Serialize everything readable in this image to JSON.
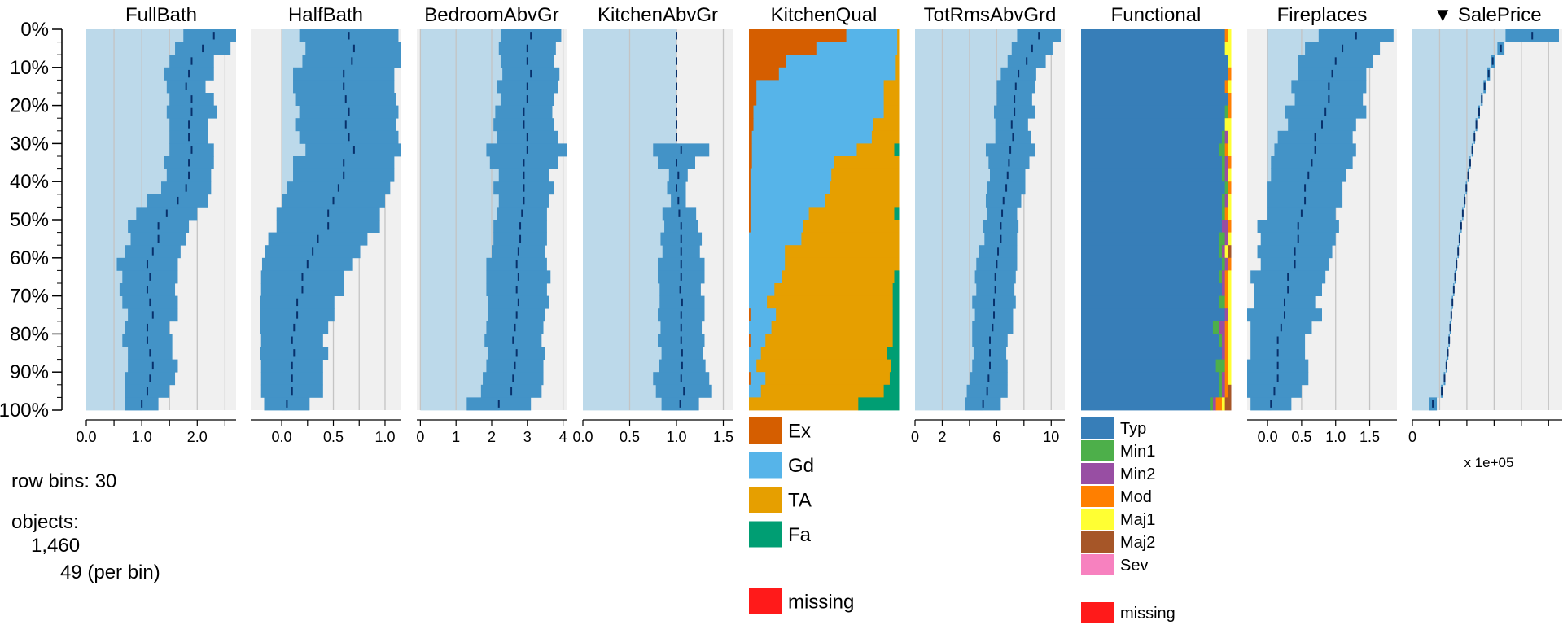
{
  "chart_data": {
    "type": "tableplot",
    "sort_column": "SalePrice",
    "sort_indicator": "▼",
    "y_tick_labels": [
      "0%",
      "10%",
      "20%",
      "30%",
      "40%",
      "50%",
      "60%",
      "70%",
      "80%",
      "90%",
      "100%"
    ],
    "row_bins": 30,
    "panels": [
      {
        "name": "FullBath",
        "type": "numeric",
        "xlim": [
          0,
          2.7
        ],
        "ticks": [
          {
            "value": 0,
            "label": "0.0"
          },
          {
            "value": 0.5,
            "label": ""
          },
          {
            "value": 1,
            "label": "1.0"
          },
          {
            "value": 1.5,
            "label": ""
          },
          {
            "value": 2,
            "label": "2.0"
          },
          {
            "value": 2.5,
            "label": ""
          }
        ],
        "means": [
          2.3,
          2.1,
          1.9,
          1.85,
          1.8,
          1.9,
          1.9,
          1.85,
          1.85,
          1.9,
          1.85,
          1.85,
          1.8,
          1.65,
          1.45,
          1.3,
          1.3,
          1.2,
          1.1,
          1.15,
          1.1,
          1.15,
          1.2,
          1.1,
          1.1,
          1.15,
          1.2,
          1.15,
          1.1,
          1.0
        ],
        "sds": [
          0.55,
          0.5,
          0.4,
          0.45,
          0.35,
          0.4,
          0.45,
          0.35,
          0.35,
          0.4,
          0.45,
          0.4,
          0.45,
          0.55,
          0.55,
          0.55,
          0.5,
          0.5,
          0.55,
          0.5,
          0.5,
          0.5,
          0.45,
          0.4,
          0.45,
          0.4,
          0.45,
          0.45,
          0.4,
          0.3
        ]
      },
      {
        "name": "HalfBath",
        "type": "numeric",
        "xlim": [
          -0.3,
          1.15
        ],
        "ticks": [
          {
            "value": 0,
            "label": "0.0"
          },
          {
            "value": 0.25,
            "label": ""
          },
          {
            "value": 0.5,
            "label": "0.5"
          },
          {
            "value": 0.75,
            "label": ""
          },
          {
            "value": 1,
            "label": "1.0"
          }
        ],
        "means": [
          0.65,
          0.7,
          0.68,
          0.6,
          0.6,
          0.62,
          0.65,
          0.62,
          0.65,
          0.7,
          0.6,
          0.6,
          0.55,
          0.5,
          0.45,
          0.45,
          0.35,
          0.3,
          0.25,
          0.2,
          0.2,
          0.15,
          0.15,
          0.12,
          0.1,
          0.12,
          0.1,
          0.1,
          0.1,
          0.05
        ],
        "sds": [
          0.48,
          0.47,
          0.48,
          0.49,
          0.49,
          0.49,
          0.48,
          0.49,
          0.48,
          0.47,
          0.49,
          0.49,
          0.5,
          0.5,
          0.5,
          0.5,
          0.48,
          0.46,
          0.44,
          0.4,
          0.4,
          0.36,
          0.36,
          0.33,
          0.3,
          0.33,
          0.3,
          0.3,
          0.3,
          0.22
        ]
      },
      {
        "name": "BedroomAbvGr",
        "type": "numeric",
        "xlim": [
          -0.1,
          4.1
        ],
        "ticks": [
          {
            "value": 0,
            "label": "0"
          },
          {
            "value": 1,
            "label": "1"
          },
          {
            "value": 2,
            "label": "2"
          },
          {
            "value": 3,
            "label": "3"
          },
          {
            "value": 4,
            "label": "4"
          }
        ],
        "means": [
          3.1,
          3.0,
          3.0,
          3.1,
          3.0,
          3.0,
          2.9,
          2.9,
          3.0,
          3.0,
          2.9,
          2.9,
          2.9,
          2.9,
          2.85,
          2.8,
          2.8,
          2.75,
          2.7,
          2.75,
          2.7,
          2.75,
          2.7,
          2.65,
          2.6,
          2.7,
          2.65,
          2.6,
          2.55,
          2.2
        ],
        "sds": [
          0.85,
          0.8,
          0.75,
          0.8,
          0.85,
          0.75,
          0.8,
          0.85,
          0.85,
          1.15,
          0.95,
          0.7,
          0.85,
          0.7,
          0.7,
          0.75,
          0.75,
          0.75,
          0.85,
          0.9,
          0.85,
          0.85,
          0.8,
          0.8,
          0.8,
          0.8,
          0.8,
          0.85,
          0.85,
          0.9
        ]
      },
      {
        "name": "KitchenAbvGr",
        "type": "numeric",
        "xlim": [
          0,
          1.6
        ],
        "ticks": [
          {
            "value": 0,
            "label": "0.0"
          },
          {
            "value": 0.5,
            "label": "0.5"
          },
          {
            "value": 1,
            "label": "1.0"
          },
          {
            "value": 1.5,
            "label": "1.5"
          }
        ],
        "means": [
          1,
          1,
          1,
          1,
          1,
          1,
          1,
          1,
          1,
          1.05,
          1.0,
          1.02,
          1.0,
          1.02,
          1.03,
          1.05,
          1.05,
          1.05,
          1.05,
          1.05,
          1.04,
          1.06,
          1.05,
          1.05,
          1.05,
          1.06,
          1.06,
          1.05,
          1.08,
          1.04
        ],
        "sds": [
          0,
          0,
          0,
          0,
          0,
          0,
          0,
          0,
          0,
          0.3,
          0.2,
          0.1,
          0.1,
          0.08,
          0.18,
          0.18,
          0.22,
          0.2,
          0.25,
          0.25,
          0.22,
          0.24,
          0.25,
          0.22,
          0.25,
          0.22,
          0.25,
          0.3,
          0.3,
          0.2
        ]
      },
      {
        "name": "KitchenQual",
        "type": "categorical",
        "categories": [
          {
            "label": "Ex",
            "color": "#D55E00",
            "key": "ex"
          },
          {
            "label": "Gd",
            "color": "#56B4E9",
            "key": "gd"
          },
          {
            "label": "TA",
            "color": "#E69F00",
            "key": "ta"
          },
          {
            "label": "Fa",
            "color": "#009E73",
            "key": "fa"
          }
        ],
        "missing_label": "missing",
        "missing_color": "#FF1A1A",
        "proportions": [
          [
            0.65,
            0.34,
            0.01,
            0
          ],
          [
            0.45,
            0.54,
            0.01,
            0
          ],
          [
            0.25,
            0.73,
            0.02,
            0
          ],
          [
            0.2,
            0.78,
            0.02,
            0
          ],
          [
            0.05,
            0.85,
            0.1,
            0
          ],
          [
            0.05,
            0.85,
            0.1,
            0
          ],
          [
            0.03,
            0.87,
            0.1,
            0
          ],
          [
            0.03,
            0.8,
            0.17,
            0
          ],
          [
            0.02,
            0.8,
            0.18,
            0
          ],
          [
            0.02,
            0.7,
            0.25,
            0.03
          ],
          [
            0.02,
            0.55,
            0.43,
            0
          ],
          [
            0.01,
            0.54,
            0.45,
            0
          ],
          [
            0.01,
            0.53,
            0.46,
            0
          ],
          [
            0.01,
            0.5,
            0.49,
            0
          ],
          [
            0.01,
            0.39,
            0.57,
            0.03
          ],
          [
            0.01,
            0.35,
            0.64,
            0
          ],
          [
            0,
            0.35,
            0.65,
            0
          ],
          [
            0,
            0.24,
            0.76,
            0
          ],
          [
            0,
            0.24,
            0.76,
            0
          ],
          [
            0,
            0.22,
            0.75,
            0.03
          ],
          [
            0,
            0.17,
            0.79,
            0.04
          ],
          [
            0,
            0.12,
            0.84,
            0.04
          ],
          [
            0.01,
            0.17,
            0.78,
            0.04
          ],
          [
            0,
            0.15,
            0.81,
            0.04
          ],
          [
            0.01,
            0.1,
            0.85,
            0.04
          ],
          [
            0,
            0.08,
            0.84,
            0.08
          ],
          [
            0,
            0.05,
            0.9,
            0.05
          ],
          [
            0.01,
            0.1,
            0.83,
            0.06
          ],
          [
            0,
            0.08,
            0.82,
            0.1
          ],
          [
            0,
            0,
            0.73,
            0.27
          ]
        ]
      },
      {
        "name": "TotRmsAbvGrd",
        "type": "numeric",
        "xlim": [
          0,
          11
        ],
        "ticks": [
          {
            "value": 0,
            "label": "0"
          },
          {
            "value": 2,
            "label": "2"
          },
          {
            "value": 4,
            "label": ""
          },
          {
            "value": 6,
            "label": "6"
          },
          {
            "value": 8,
            "label": ""
          },
          {
            "value": 10,
            "label": "10"
          }
        ],
        "means": [
          9.1,
          8.6,
          8.2,
          7.6,
          7.4,
          7.3,
          7.3,
          7.1,
          7.2,
          7.0,
          6.9,
          6.8,
          6.7,
          6.5,
          6.4,
          6.3,
          6.3,
          6.1,
          6.0,
          5.9,
          5.9,
          5.8,
          5.8,
          5.7,
          5.5,
          5.5,
          5.5,
          5.4,
          5.3,
          5.0
        ],
        "sds": [
          1.6,
          1.5,
          1.4,
          1.3,
          1.4,
          1.3,
          1.5,
          1.2,
          1.3,
          1.8,
          1.5,
          1.3,
          1.4,
          1.3,
          1.1,
          1.3,
          1.2,
          1.4,
          1.5,
          1.5,
          1.4,
          1.6,
          1.4,
          1.5,
          1.3,
          1.2,
          1.3,
          1.4,
          1.5,
          1.3
        ]
      },
      {
        "name": "Functional",
        "type": "categorical",
        "categories": [
          {
            "label": "Typ",
            "color": "#377EB8",
            "key": "typ"
          },
          {
            "label": "Min1",
            "color": "#4DAF4A",
            "key": "min1"
          },
          {
            "label": "Min2",
            "color": "#984EA3",
            "key": "min2"
          },
          {
            "label": "Mod",
            "color": "#FF7F00",
            "key": "mod"
          },
          {
            "label": "Maj1",
            "color": "#FFFF33",
            "key": "maj1"
          },
          {
            "label": "Maj2",
            "color": "#A65628",
            "key": "maj2"
          },
          {
            "label": "Sev",
            "color": "#F781BF",
            "key": "sev"
          }
        ],
        "missing_label": "missing",
        "missing_color": "#FF1A1A",
        "proportions": [
          [
            0.96,
            0,
            0,
            0.02,
            0.02,
            0,
            0
          ],
          [
            0.96,
            0,
            0,
            0,
            0.04,
            0,
            0
          ],
          [
            0.98,
            0,
            0,
            0,
            0.02,
            0,
            0
          ],
          [
            0.98,
            0,
            0,
            0.02,
            0,
            0,
            0
          ],
          [
            0.96,
            0,
            0,
            0.02,
            0.02,
            0,
            0
          ],
          [
            0.98,
            0,
            0,
            0.02,
            0,
            0,
            0
          ],
          [
            0.96,
            0.02,
            0,
            0.02,
            0,
            0,
            0
          ],
          [
            0.96,
            0,
            0,
            0,
            0.04,
            0,
            0
          ],
          [
            0.94,
            0.02,
            0.02,
            0,
            0.02,
            0,
            0
          ],
          [
            0.92,
            0.04,
            0,
            0.02,
            0.02,
            0,
            0
          ],
          [
            0.94,
            0.02,
            0.02,
            0.02,
            0,
            0,
            0
          ],
          [
            0.94,
            0.02,
            0.02,
            0,
            0.02,
            0,
            0
          ],
          [
            0.96,
            0.02,
            0,
            0.02,
            0,
            0,
            0
          ],
          [
            0.94,
            0.02,
            0.02,
            0,
            0.02,
            0,
            0
          ],
          [
            0.94,
            0.02,
            0,
            0.02,
            0.02,
            0,
            0
          ],
          [
            0.94,
            0,
            0.04,
            0.02,
            0,
            0,
            0
          ],
          [
            0.92,
            0.04,
            0.02,
            0,
            0.02,
            0,
            0
          ],
          [
            0.92,
            0.02,
            0.02,
            0,
            0.02,
            0.02,
            0
          ],
          [
            0.94,
            0.02,
            0.02,
            0.02,
            0,
            0,
            0
          ],
          [
            0.92,
            0.02,
            0.02,
            0.02,
            0.02,
            0,
            0
          ],
          [
            0.94,
            0,
            0.02,
            0.02,
            0.02,
            0,
            0
          ],
          [
            0.92,
            0.04,
            0,
            0.02,
            0.02,
            0,
            0
          ],
          [
            0.96,
            0,
            0.02,
            0,
            0.02,
            0,
            0
          ],
          [
            0.88,
            0.04,
            0.04,
            0.02,
            0.02,
            0,
            0
          ],
          [
            0.92,
            0.02,
            0.02,
            0.02,
            0.02,
            0,
            0
          ],
          [
            0.94,
            0,
            0.02,
            0.02,
            0.02,
            0,
            0
          ],
          [
            0.9,
            0.06,
            0,
            0.02,
            0.02,
            0,
            0
          ],
          [
            0.92,
            0.02,
            0.02,
            0.02,
            0.02,
            0,
            0
          ],
          [
            0.92,
            0.02,
            0.02,
            0.02,
            0,
            0.02,
            0
          ],
          [
            0.86,
            0.02,
            0.02,
            0.04,
            0.02,
            0.04,
            0
          ]
        ]
      },
      {
        "name": "Fireplaces",
        "type": "numeric",
        "xlim": [
          -0.3,
          1.9
        ],
        "ticks": [
          {
            "value": 0,
            "label": "0.0"
          },
          {
            "value": 0.5,
            "label": "0.5"
          },
          {
            "value": 1,
            "label": "1.0"
          },
          {
            "value": 1.5,
            "label": "1.5"
          }
        ],
        "means": [
          1.3,
          1.1,
          1.0,
          0.95,
          0.9,
          0.9,
          0.85,
          0.8,
          0.7,
          0.7,
          0.65,
          0.6,
          0.55,
          0.55,
          0.5,
          0.45,
          0.45,
          0.4,
          0.4,
          0.3,
          0.3,
          0.25,
          0.25,
          0.2,
          0.15,
          0.15,
          0.15,
          0.15,
          0.1,
          0.05
        ],
        "sds": [
          0.55,
          0.55,
          0.55,
          0.5,
          0.55,
          0.5,
          0.6,
          0.5,
          0.55,
          0.6,
          0.6,
          0.55,
          0.55,
          0.55,
          0.5,
          0.6,
          0.55,
          0.55,
          0.5,
          0.55,
          0.5,
          0.45,
          0.55,
          0.45,
          0.4,
          0.4,
          0.45,
          0.45,
          0.4,
          0.3
        ]
      },
      {
        "name": "SalePrice",
        "type": "numeric",
        "xlim": [
          0,
          5.5
        ],
        "ticks": [
          {
            "value": 0,
            "label": "0"
          },
          {
            "value": 1,
            "label": ""
          },
          {
            "value": 2,
            "label": ""
          },
          {
            "value": 3,
            "label": ""
          },
          {
            "value": 4,
            "label": ""
          },
          {
            "value": 5,
            "label": ""
          }
        ],
        "scale_label": "x 1e+05",
        "means": [
          4.4,
          3.25,
          2.95,
          2.8,
          2.65,
          2.55,
          2.45,
          2.35,
          2.28,
          2.2,
          2.12,
          2.05,
          1.98,
          1.92,
          1.85,
          1.79,
          1.73,
          1.68,
          1.62,
          1.57,
          1.52,
          1.47,
          1.43,
          1.39,
          1.35,
          1.3,
          1.25,
          1.18,
          1.08,
          0.75
        ],
        "sds": [
          0.98,
          0.13,
          0.07,
          0.05,
          0.04,
          0.03,
          0.03,
          0.03,
          0.02,
          0.02,
          0.02,
          0.02,
          0.02,
          0.02,
          0.02,
          0.02,
          0.02,
          0.02,
          0.02,
          0.02,
          0.02,
          0.02,
          0.02,
          0.02,
          0.02,
          0.02,
          0.02,
          0.03,
          0.03,
          0.15
        ]
      }
    ]
  },
  "info": {
    "row_bins_text": "row bins: 30",
    "objects_label": "objects:",
    "objects_count": "1,460",
    "objects_per_bin": "49 (per bin)"
  }
}
